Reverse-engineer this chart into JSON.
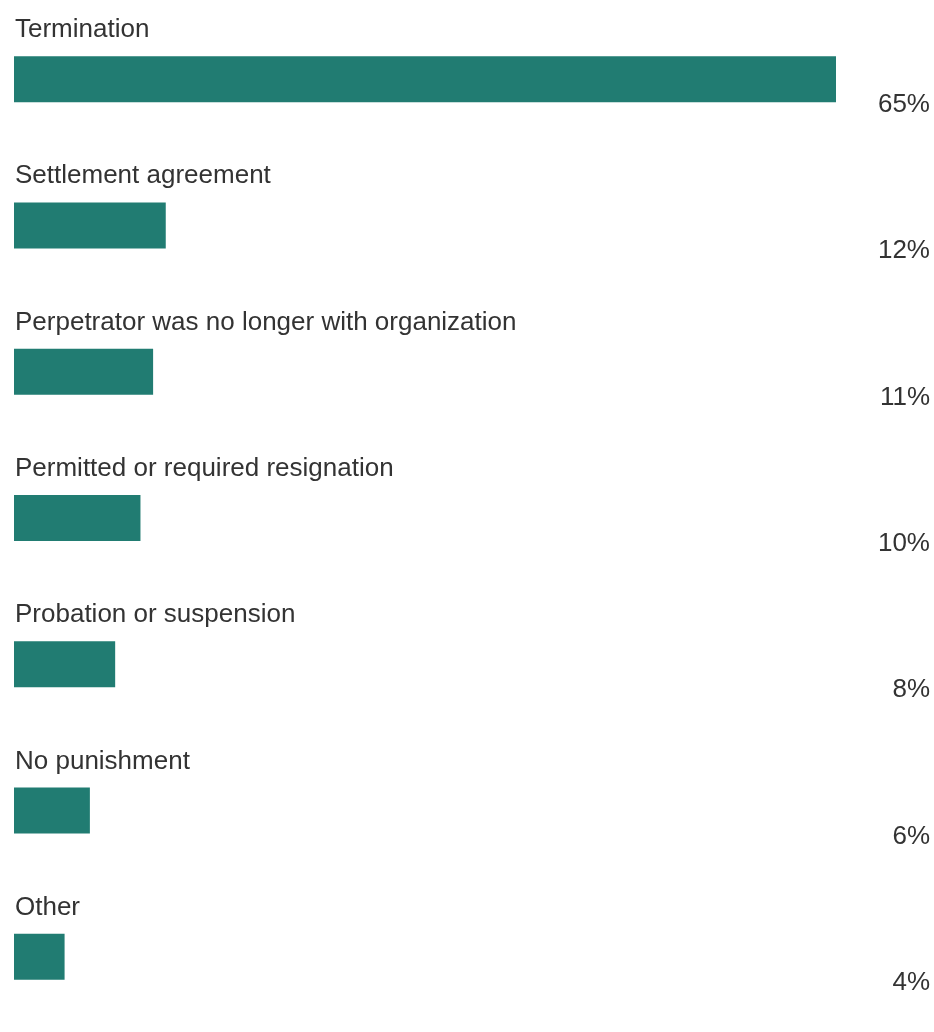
{
  "chart_data": {
    "type": "bar",
    "orientation": "horizontal",
    "categories": [
      "Termination",
      "Settlement agreement",
      "Perpetrator was no longer with organization",
      "Permitted or required resignation",
      "Probation or suspension",
      "No punishment",
      "Other"
    ],
    "values": [
      65,
      12,
      11,
      10,
      8,
      6,
      4
    ],
    "value_labels": [
      "65%",
      "12%",
      "11%",
      "10%",
      "8%",
      "6%",
      "4%"
    ],
    "color": "#217c72"
  }
}
